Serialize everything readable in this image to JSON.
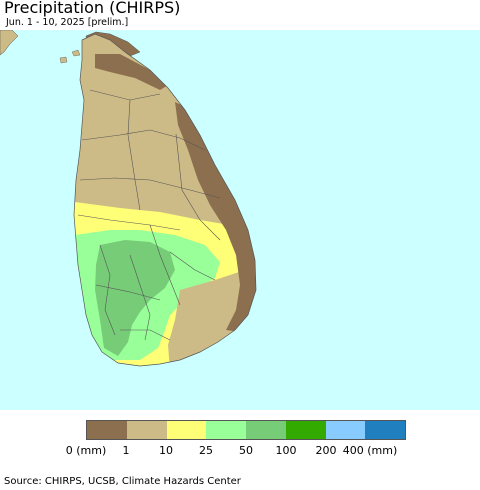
{
  "title": "Precipitation (CHIRPS)",
  "subtitle": "Jun. 1 - 10, 2025 [prelim.]",
  "legend": {
    "colors": [
      "#8b6f4f",
      "#cdbb87",
      "#ffff77",
      "#99ff99",
      "#77cc77",
      "#33aa00",
      "#88ccff",
      "#1f7fbf"
    ],
    "labels": [
      "0 (mm)",
      "1",
      "10",
      "25",
      "50",
      "100",
      "200",
      "400 (mm)"
    ]
  },
  "source": "Source: CHIRPS, UCSB, Climate Hazards Center",
  "colors": {
    "ocean": "#ccffff",
    "boundary": "#555555"
  }
}
